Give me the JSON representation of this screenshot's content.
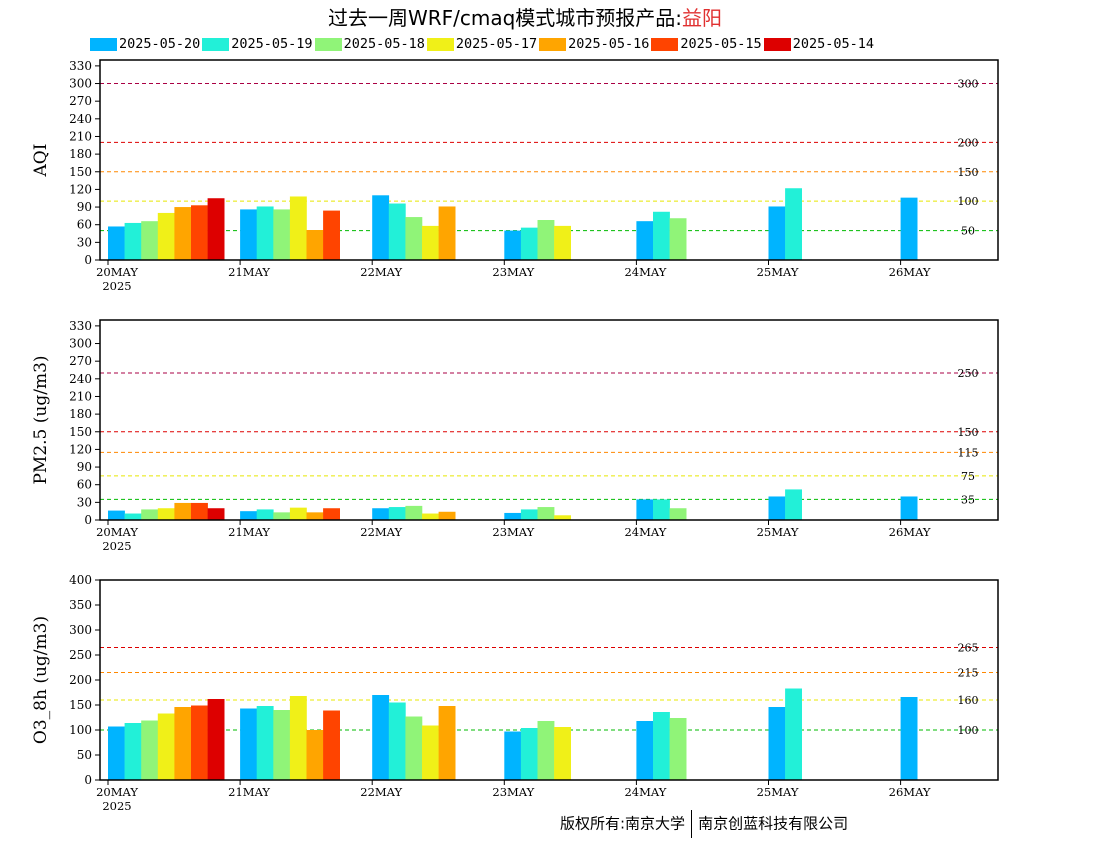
{
  "page": {
    "title_prefix": "过去一周WRF/cmaq模式城市预报产品:",
    "title_city": "益阳",
    "footer_left": "版权所有:南京大学",
    "footer_right": "南京创蓝科技有限公司"
  },
  "colors": {
    "2025-05-20": "#00b4ff",
    "2025-05-19": "#22f0d8",
    "2025-05-18": "#90f478",
    "2025-05-17": "#f0f018",
    "2025-05-16": "#ffa500",
    "2025-05-15": "#ff4400",
    "2025-05-14": "#dd0000"
  },
  "legend": [
    "2025-05-20",
    "2025-05-19",
    "2025-05-18",
    "2025-05-17",
    "2025-05-16",
    "2025-05-15",
    "2025-05-14"
  ],
  "chart_data": [
    {
      "type": "bar",
      "ylabel": "AQI",
      "ylim": [
        0,
        340
      ],
      "yticks": [
        0,
        30,
        60,
        90,
        120,
        150,
        180,
        210,
        240,
        270,
        300,
        330
      ],
      "categories": [
        "20MAY",
        "21MAY",
        "22MAY",
        "23MAY",
        "24MAY",
        "25MAY",
        "26MAY"
      ],
      "first_category_year": "2025",
      "thresholds": [
        {
          "value": 300,
          "label": "300",
          "color": "#aa0044"
        },
        {
          "value": 200,
          "label": "200",
          "color": "#dd0000"
        },
        {
          "value": 150,
          "label": "150",
          "color": "#ff8800"
        },
        {
          "value": 100,
          "label": "100",
          "color": "#e8e800"
        },
        {
          "value": 50,
          "label": "50",
          "color": "#00bb00"
        }
      ],
      "series": [
        {
          "name": "2025-05-20",
          "values": [
            57,
            86,
            110,
            50,
            66,
            91,
            106
          ]
        },
        {
          "name": "2025-05-19",
          "values": [
            63,
            91,
            96,
            55,
            82,
            122,
            null
          ]
        },
        {
          "name": "2025-05-18",
          "values": [
            66,
            86,
            73,
            68,
            71,
            null,
            null
          ]
        },
        {
          "name": "2025-05-17",
          "values": [
            80,
            108,
            58,
            58,
            null,
            null,
            null
          ]
        },
        {
          "name": "2025-05-16",
          "values": [
            90,
            51,
            91,
            null,
            null,
            null,
            null
          ]
        },
        {
          "name": "2025-05-15",
          "values": [
            93,
            84,
            null,
            null,
            null,
            null,
            null
          ]
        },
        {
          "name": "2025-05-14",
          "values": [
            105,
            null,
            null,
            null,
            null,
            null,
            null
          ]
        }
      ]
    },
    {
      "type": "bar",
      "ylabel": "PM2.5 (ug/m3)",
      "ylim": [
        0,
        340
      ],
      "yticks": [
        0,
        30,
        60,
        90,
        120,
        150,
        180,
        210,
        240,
        270,
        300,
        330
      ],
      "categories": [
        "20MAY",
        "21MAY",
        "22MAY",
        "23MAY",
        "24MAY",
        "25MAY",
        "26MAY"
      ],
      "first_category_year": "2025",
      "thresholds": [
        {
          "value": 250,
          "label": "250",
          "color": "#aa0044"
        },
        {
          "value": 150,
          "label": "150",
          "color": "#dd0000"
        },
        {
          "value": 115,
          "label": "115",
          "color": "#ff8800"
        },
        {
          "value": 75,
          "label": "75",
          "color": "#e8e800"
        },
        {
          "value": 35,
          "label": "35",
          "color": "#00bb00"
        }
      ],
      "series": [
        {
          "name": "2025-05-20",
          "values": [
            16,
            15,
            20,
            12,
            35,
            40,
            40
          ]
        },
        {
          "name": "2025-05-19",
          "values": [
            11,
            18,
            22,
            18,
            35,
            52,
            null
          ]
        },
        {
          "name": "2025-05-18",
          "values": [
            18,
            13,
            24,
            22,
            20,
            null,
            null
          ]
        },
        {
          "name": "2025-05-17",
          "values": [
            20,
            21,
            11,
            8,
            null,
            null,
            null
          ]
        },
        {
          "name": "2025-05-16",
          "values": [
            29,
            13,
            14,
            null,
            null,
            null,
            null
          ]
        },
        {
          "name": "2025-05-15",
          "values": [
            29,
            20,
            null,
            null,
            null,
            null,
            null
          ]
        },
        {
          "name": "2025-05-14",
          "values": [
            20,
            null,
            null,
            null,
            null,
            null,
            null
          ]
        }
      ]
    },
    {
      "type": "bar",
      "ylabel": "O3_8h (ug/m3)",
      "ylim": [
        0,
        400
      ],
      "yticks": [
        0,
        50,
        100,
        150,
        200,
        250,
        300,
        350,
        400
      ],
      "categories": [
        "20MAY",
        "21MAY",
        "22MAY",
        "23MAY",
        "24MAY",
        "25MAY",
        "26MAY"
      ],
      "first_category_year": "2025",
      "thresholds": [
        {
          "value": 265,
          "label": "265",
          "color": "#dd0000"
        },
        {
          "value": 215,
          "label": "215",
          "color": "#ff8800"
        },
        {
          "value": 160,
          "label": "160",
          "color": "#e8e800"
        },
        {
          "value": 100,
          "label": "100",
          "color": "#00bb00"
        }
      ],
      "series": [
        {
          "name": "2025-05-20",
          "values": [
            107,
            143,
            170,
            97,
            118,
            146,
            166
          ]
        },
        {
          "name": "2025-05-19",
          "values": [
            114,
            148,
            155,
            104,
            136,
            183,
            null
          ]
        },
        {
          "name": "2025-05-18",
          "values": [
            119,
            140,
            127,
            118,
            124,
            null,
            null
          ]
        },
        {
          "name": "2025-05-17",
          "values": [
            133,
            168,
            109,
            106,
            null,
            null,
            null
          ]
        },
        {
          "name": "2025-05-16",
          "values": [
            146,
            100,
            148,
            null,
            null,
            null,
            null
          ]
        },
        {
          "name": "2025-05-15",
          "values": [
            149,
            139,
            null,
            null,
            null,
            null,
            null
          ]
        },
        {
          "name": "2025-05-14",
          "values": [
            162,
            null,
            null,
            null,
            null,
            null,
            null
          ]
        }
      ]
    }
  ]
}
